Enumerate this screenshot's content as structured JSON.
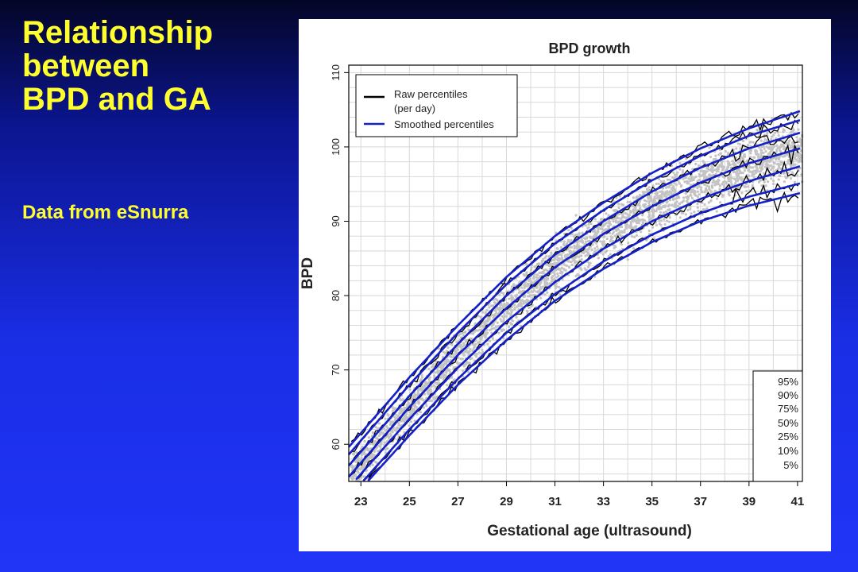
{
  "slide": {
    "title_lines": [
      "Relationship",
      "between",
      "BPD and GA"
    ],
    "subtitle": "Data from eSnurra"
  },
  "colors": {
    "background": "#1a2ee6",
    "title": "#ffff2e",
    "raw_line": "#000000",
    "smoothed_line": "#1420c8",
    "points": "#c4c4c4"
  },
  "chart_data": {
    "type": "line",
    "title": "BPD growth",
    "xlabel": "Gestational age (ultrasound)",
    "ylabel": "BPD",
    "xlim": [
      22.5,
      41.2
    ],
    "ylim": [
      55,
      111
    ],
    "xticks": [
      23,
      25,
      27,
      29,
      31,
      33,
      35,
      37,
      39,
      41
    ],
    "yticks": [
      60,
      70,
      80,
      90,
      100,
      110
    ],
    "grid": true,
    "legend": {
      "position": "top-left",
      "entries": [
        {
          "label_lines": [
            "Raw percentiles",
            "(per day)"
          ],
          "color": "#000000"
        },
        {
          "label_lines": [
            "Smoothed percentiles"
          ],
          "color": "#1420c8"
        }
      ]
    },
    "percentile_box": {
      "position": "bottom-right",
      "labels": [
        "95%",
        "90%",
        "75%",
        "50%",
        "25%",
        "10%",
        "5%"
      ]
    },
    "x": [
      23,
      25,
      27,
      29,
      31,
      33,
      35,
      37,
      39,
      41
    ],
    "series": [
      {
        "name": "95%",
        "values": [
          61.5,
          69.0,
          76.0,
          82.5,
          88.0,
          92.5,
          96.5,
          99.8,
          102.5,
          104.7
        ]
      },
      {
        "name": "90%",
        "values": [
          60.5,
          68.0,
          75.0,
          81.5,
          87.0,
          91.5,
          95.5,
          98.8,
          101.5,
          103.5
        ]
      },
      {
        "name": "75%",
        "values": [
          59.0,
          66.5,
          73.5,
          80.0,
          85.5,
          90.0,
          94.0,
          97.2,
          99.8,
          101.8
        ]
      },
      {
        "name": "50%",
        "values": [
          57.5,
          65.0,
          72.0,
          78.3,
          83.8,
          88.3,
          92.0,
          95.2,
          97.8,
          99.7
        ]
      },
      {
        "name": "25%",
        "values": [
          56.0,
          63.4,
          70.3,
          76.5,
          81.8,
          86.3,
          90.0,
          93.0,
          95.4,
          97.3
        ]
      },
      {
        "name": "10%",
        "values": [
          54.7,
          62.0,
          68.8,
          75.0,
          80.2,
          84.6,
          88.2,
          91.1,
          93.3,
          95.0
        ]
      },
      {
        "name": "5%",
        "values": [
          54.0,
          61.2,
          68.0,
          74.0,
          79.3,
          83.6,
          87.2,
          90.0,
          92.1,
          93.7
        ]
      }
    ]
  }
}
